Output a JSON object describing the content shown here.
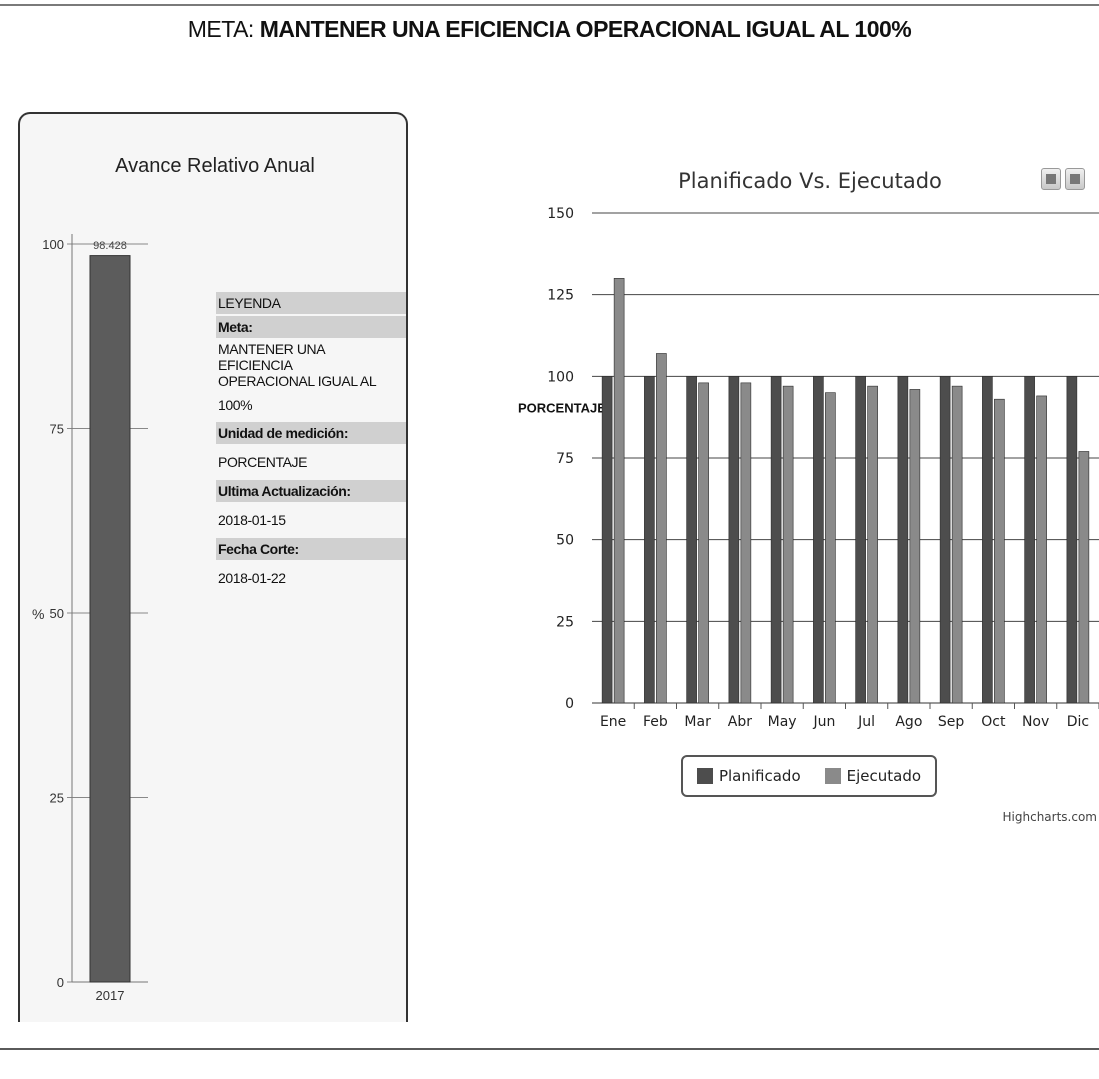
{
  "page": {
    "title_prefix": "META:",
    "title_main": "MANTENER UNA EFICIENCIA OPERACIONAL IGUAL AL 100%"
  },
  "left_panel": {
    "legend": {
      "heading": "LEYENDA",
      "meta_label": "Meta:",
      "meta_value_lines": [
        "MANTENER UNA",
        "EFICIENCIA",
        "OPERACIONAL IGUAL AL",
        "100%"
      ],
      "unidad_label": "Unidad de medición:",
      "unidad_value": "PORCENTAJE",
      "actualizacion_label": "Ultima Actualización:",
      "actualizacion_value": "2018-01-15",
      "corte_label": "Fecha Corte:",
      "corte_value": "2018-01-22"
    }
  },
  "right_panel": {
    "credits": "Highcharts.com"
  },
  "colors": {
    "planificado": "#4d4d4d",
    "ejecutado": "#8a8a8a",
    "left_bar": "#5c5c5c"
  },
  "chart_data": [
    {
      "type": "bar",
      "title": "Avance Relativo Anual",
      "categories": [
        "2017"
      ],
      "values": [
        98.428
      ],
      "data_labels": [
        "98.428"
      ],
      "ylabel": "%",
      "ylim": [
        0,
        100
      ],
      "yticks": [
        0,
        25,
        50,
        75,
        100
      ]
    },
    {
      "type": "bar",
      "title": "Planificado Vs. Ejecutado",
      "ylabel": "PORCENTAJE",
      "ylim": [
        0,
        150
      ],
      "yticks": [
        0,
        25,
        50,
        75,
        100,
        125,
        150
      ],
      "categories": [
        "Ene",
        "Feb",
        "Mar",
        "Abr",
        "May",
        "Jun",
        "Jul",
        "Ago",
        "Sep",
        "Oct",
        "Nov",
        "Dic"
      ],
      "series": [
        {
          "name": "Planificado",
          "values": [
            100,
            100,
            100,
            100,
            100,
            100,
            100,
            100,
            100,
            100,
            100,
            100
          ]
        },
        {
          "name": "Ejecutado",
          "values": [
            130,
            107,
            98,
            98,
            97,
            95,
            97,
            96,
            97,
            93,
            94,
            77
          ]
        }
      ],
      "legend_position": "bottom",
      "grid": true
    }
  ]
}
